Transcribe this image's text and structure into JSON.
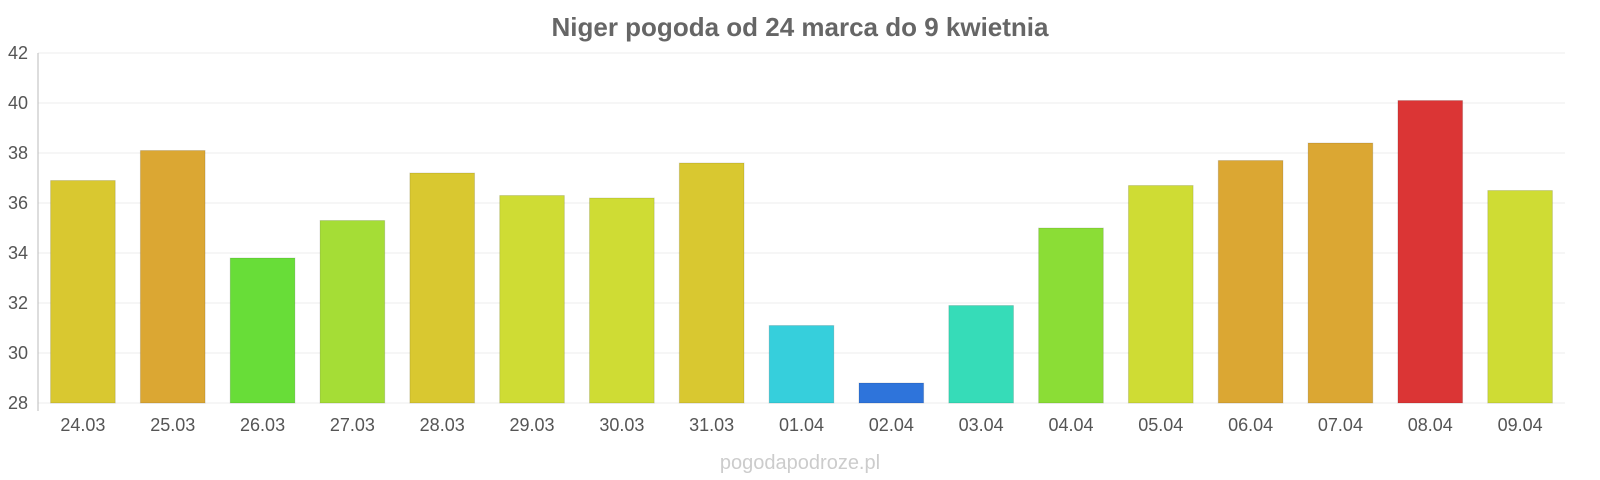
{
  "chart_data": {
    "type": "bar",
    "title": "Niger pogoda od 24 marca do 9 kwietnia",
    "xlabel": "",
    "ylabel": "",
    "ylim": [
      28,
      42
    ],
    "yticks": [
      28,
      30,
      32,
      34,
      36,
      38,
      40,
      42
    ],
    "grid": true,
    "categories": [
      "24.03",
      "25.03",
      "26.03",
      "27.03",
      "28.03",
      "29.03",
      "30.03",
      "31.03",
      "01.04",
      "02.04",
      "03.04",
      "04.04",
      "05.04",
      "06.04",
      "07.04",
      "08.04",
      "09.04"
    ],
    "values": [
      36.9,
      38.1,
      33.8,
      35.3,
      37.2,
      36.3,
      36.2,
      37.6,
      31.1,
      28.8,
      31.9,
      35.0,
      36.7,
      37.7,
      38.4,
      40.1,
      36.5
    ],
    "colors": [
      "#d9c830",
      "#dba733",
      "#68dd38",
      "#a5dd36",
      "#d9c830",
      "#cfdc34",
      "#cfdc34",
      "#d9c830",
      "#36cfdc",
      "#2e74db",
      "#36dcb8",
      "#8bdd36",
      "#cfdc34",
      "#dba733",
      "#dba733",
      "#db3535",
      "#cfdc34"
    ]
  },
  "watermark": "pogodapodroze.pl"
}
